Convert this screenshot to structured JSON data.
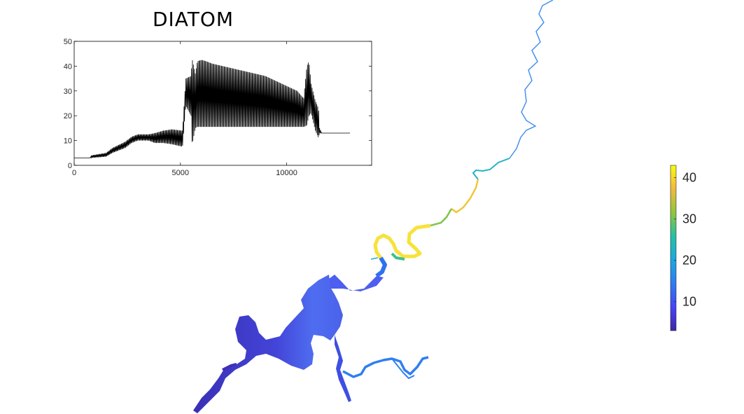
{
  "chart_data": [
    {
      "type": "line",
      "title": "DIATOM",
      "xlabel": "",
      "ylabel": "",
      "xlim": [
        0,
        14000
      ],
      "ylim": [
        0,
        50
      ],
      "xticks": [
        0,
        5000,
        10000
      ],
      "yticks": [
        0,
        10,
        20,
        30,
        40,
        50
      ],
      "line_color": "#000000",
      "envelope": {
        "x": [
          0,
          750,
          800,
          1500,
          1800,
          2400,
          2700,
          3000,
          3500,
          3800,
          4200,
          4600,
          5100,
          5250,
          5500,
          5550,
          5700,
          5800,
          6000,
          6200,
          6500,
          7000,
          7500,
          8000,
          8500,
          9000,
          9500,
          10000,
          10500,
          10800,
          10950,
          11050,
          11150,
          11350,
          11500,
          11550,
          11650,
          11800,
          13000
        ],
        "lower": [
          3,
          3,
          3,
          3.5,
          5,
          7,
          9,
          10,
          10,
          9,
          9,
          8.5,
          7.5,
          24,
          20,
          8,
          15,
          15.5,
          15.5,
          15.5,
          15.5,
          15.5,
          15.5,
          15.5,
          15.5,
          15.5,
          15.5,
          15.5,
          15.5,
          15.5,
          16,
          20,
          21,
          14,
          11,
          13,
          13,
          13,
          13
        ],
        "upper": [
          3,
          3,
          4,
          5,
          7,
          9.5,
          11.5,
          12.5,
          12.5,
          13,
          14,
          14.5,
          14,
          35,
          36,
          43,
          37,
          42,
          42.5,
          42,
          41,
          40,
          39,
          38,
          37,
          36,
          34,
          32,
          30,
          27,
          40,
          42,
          33,
          26,
          23,
          15,
          13,
          13,
          13
        ]
      }
    },
    {
      "type": "heatmap",
      "title": "",
      "colormap": "parula",
      "clim": [
        3,
        43
      ],
      "colorbar_ticks": [
        10,
        20,
        30,
        40
      ],
      "colors": [
        "#3e26a8",
        "#4743f8",
        "#2e7ef1",
        "#1ca9df",
        "#25c0a4",
        "#8fc63e",
        "#f1bb3e",
        "#f9fb0e"
      ]
    }
  ]
}
